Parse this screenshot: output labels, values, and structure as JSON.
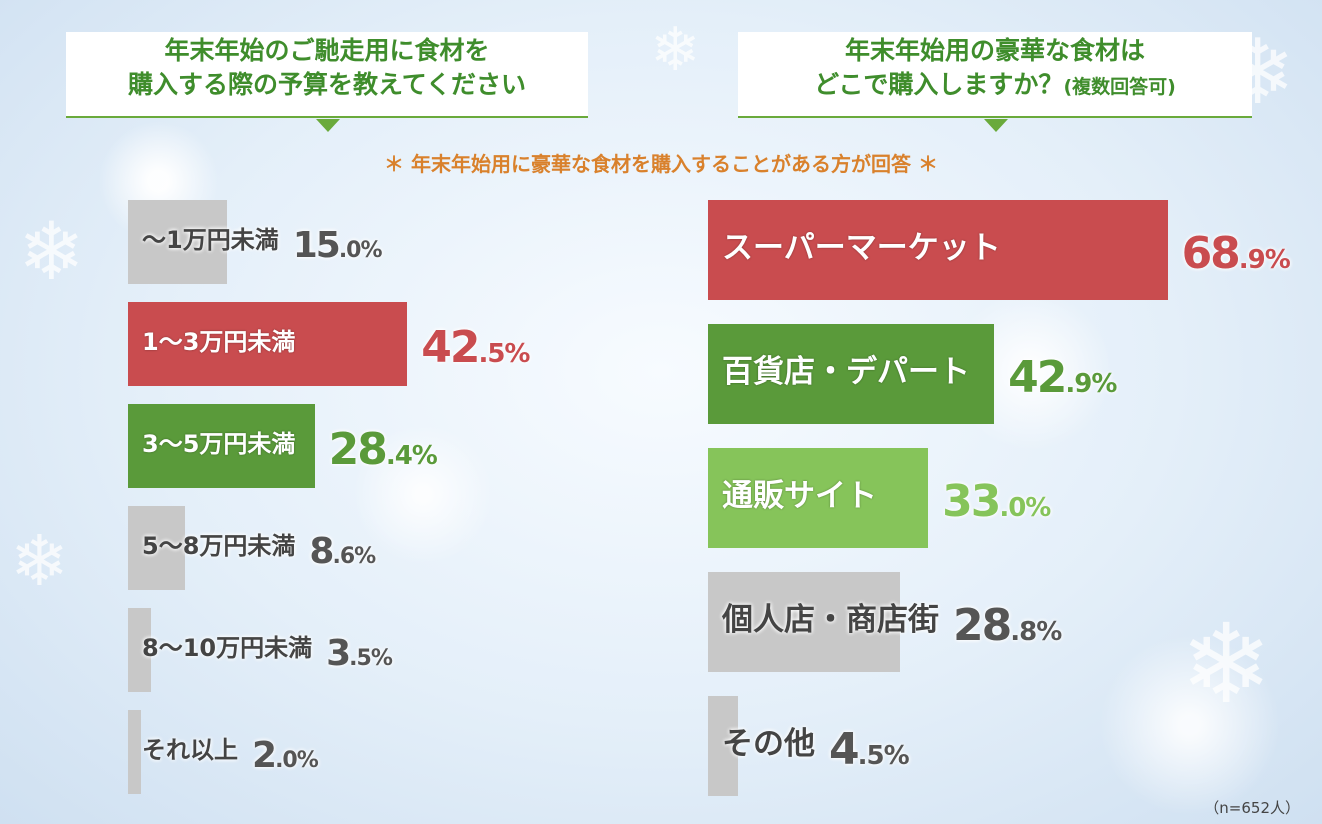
{
  "colors": {
    "red": "#c94c4f",
    "green_dark": "#5a9a3a",
    "green_light": "#86c45a",
    "gray": "#c8c8c8",
    "title_green": "#3f8d2c",
    "note_orange": "#d9812c"
  },
  "left_question": {
    "line1": "年末年始のご馳走用に食材を",
    "line2": "購入する際の予算を教えてください"
  },
  "right_question": {
    "line1": "年末年始用の豪華な食材は",
    "line2": "どこで購入しますか？",
    "line2_small": "(複数回答可)"
  },
  "note": "＊ 年末年始用に豪華な食材を購入することがある方が回答 ＊",
  "footnote": "（n=652人）",
  "chart_data": [
    {
      "type": "bar",
      "orientation": "horizontal",
      "unit": "%",
      "categories": [
        "〜1万円未満",
        "1〜3万円未満",
        "3〜5万円未満",
        "5〜8万円未満",
        "8〜10万円未満",
        "それ以上"
      ],
      "values": [
        15.0,
        42.5,
        28.4,
        8.6,
        3.5,
        2.0
      ],
      "bar_colors": [
        "#c8c8c8",
        "#c94c4f",
        "#5a9a3a",
        "#c8c8c8",
        "#c8c8c8",
        "#c8c8c8"
      ],
      "pct_colors": [
        "#555555",
        "#c94c4f",
        "#5a9a3a",
        "#555555",
        "#555555",
        "#555555"
      ],
      "label_colors": [
        "#444444",
        "#ffffff",
        "#ffffff",
        "#444444",
        "#444444",
        "#444444"
      ]
    },
    {
      "type": "bar",
      "orientation": "horizontal",
      "unit": "%",
      "categories": [
        "スーパーマーケット",
        "百貨店・デパート",
        "通販サイト",
        "個人店・商店街",
        "その他"
      ],
      "values": [
        68.9,
        42.9,
        33.0,
        28.8,
        4.5
      ],
      "bar_colors": [
        "#c94c4f",
        "#5a9a3a",
        "#86c45a",
        "#c8c8c8",
        "#c8c8c8"
      ],
      "pct_colors": [
        "#c94c4f",
        "#5a9a3a",
        "#86c45a",
        "#555555",
        "#555555"
      ],
      "label_colors": [
        "#ffffff",
        "#ffffff",
        "#ffffff",
        "#444444",
        "#444444"
      ]
    }
  ]
}
